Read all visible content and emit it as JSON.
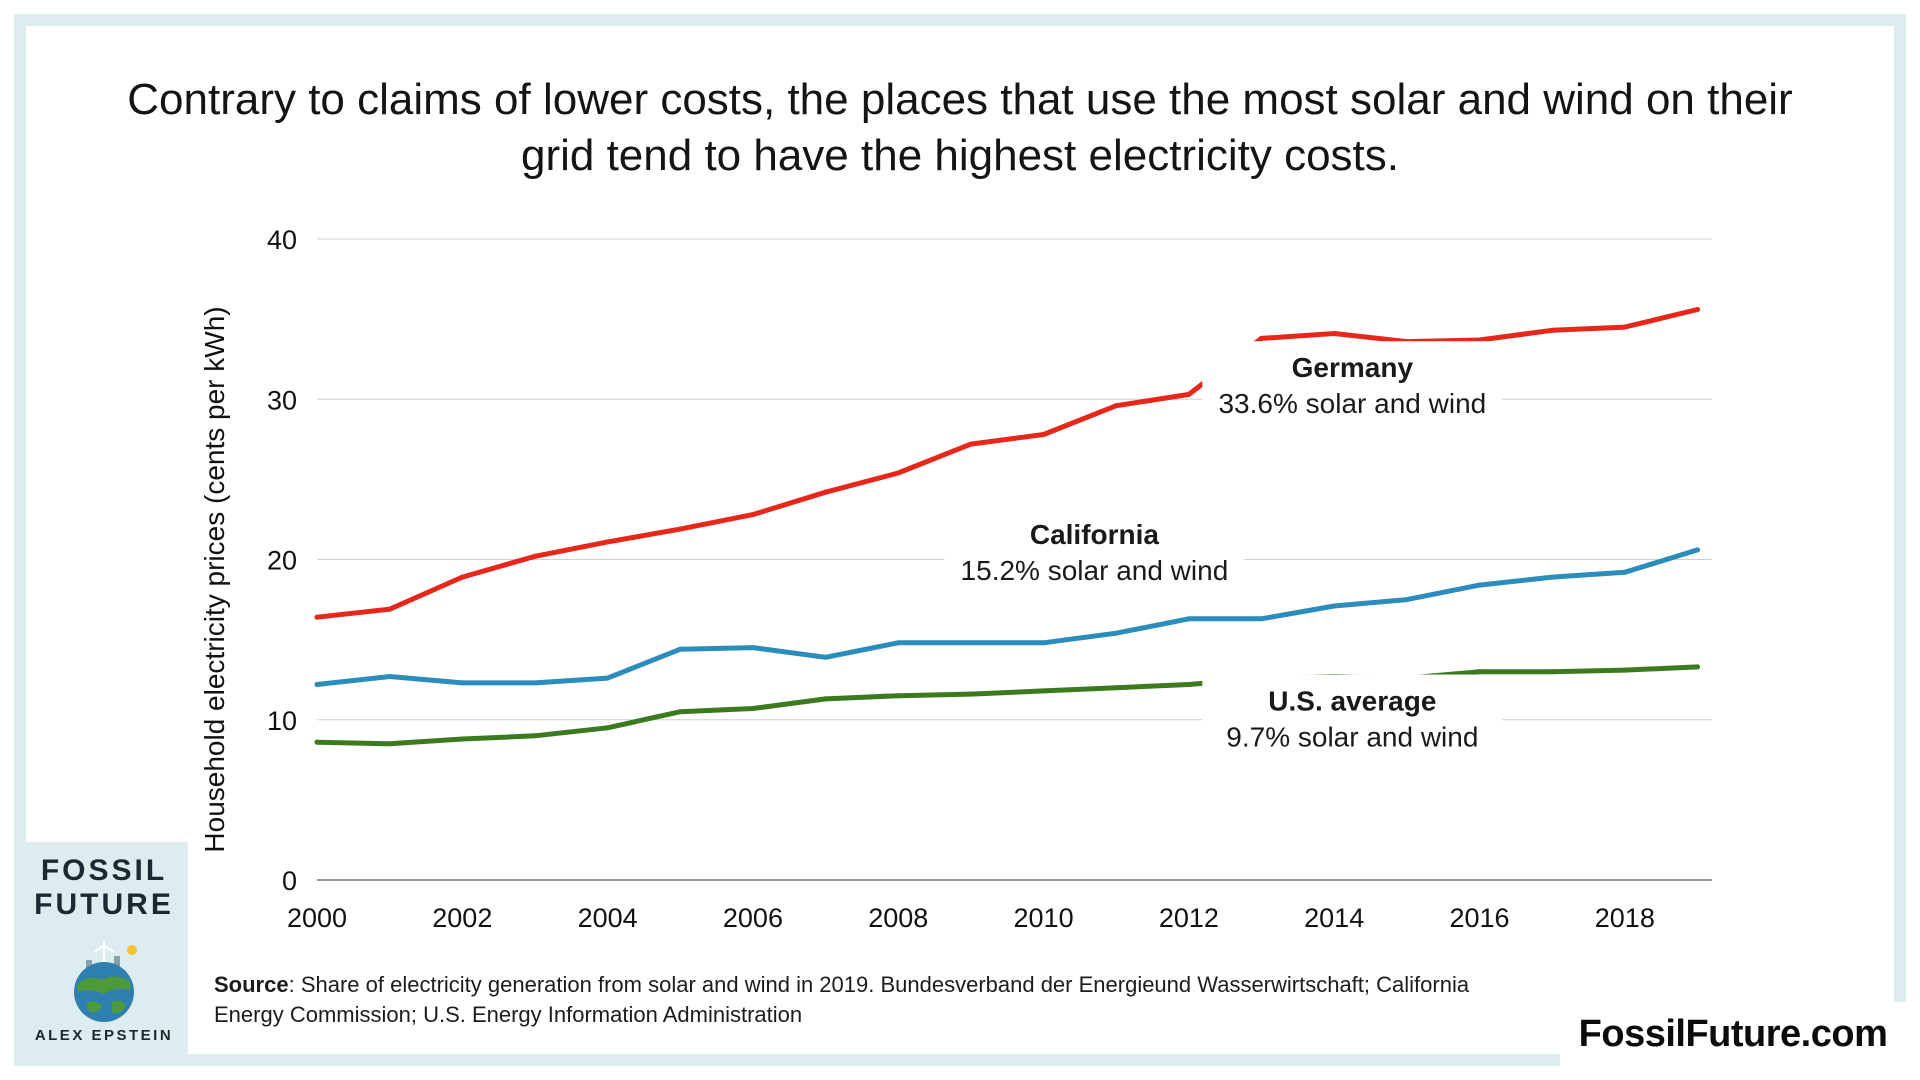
{
  "title": "Contrary to claims of lower costs, the places that use the most solar and wind on their grid tend to have the highest electricity costs.",
  "source": {
    "label": "Source",
    "text": ": Share of electricity generation from solar and wind in 2019. Bundesverband der Energieund Wasserwirtschaft; California Energy Commission; U.S. Energy Information Administration"
  },
  "site": "FossilFuture.com",
  "book": {
    "title_line1": "FOSSIL",
    "title_line2": "FUTURE",
    "author": "ALEX EPSTEIN"
  },
  "colors": {
    "germany": "#e8271b",
    "california": "#2a8dbb",
    "us_average": "#3b7a1e",
    "grid": "#cfcfcf",
    "background_accent": "#dcecef"
  },
  "chart_data": {
    "type": "line",
    "title": "Contrary to claims of lower costs, the places that use the most solar and wind on their grid tend to have the highest electricity costs.",
    "xlabel": "",
    "ylabel": "Household electricity prices (cents per kWh)",
    "x": [
      2000,
      2001,
      2002,
      2003,
      2004,
      2005,
      2006,
      2007,
      2008,
      2009,
      2010,
      2011,
      2012,
      2013,
      2014,
      2015,
      2016,
      2017,
      2018,
      2019
    ],
    "x_ticks": [
      2000,
      2002,
      2004,
      2006,
      2008,
      2010,
      2012,
      2014,
      2016,
      2018
    ],
    "y_ticks": [
      0,
      10,
      20,
      30,
      40
    ],
    "xlim": [
      2000,
      2019.2
    ],
    "ylim": [
      0,
      40
    ],
    "grid": true,
    "legend": "inline labels",
    "series": [
      {
        "name": "Germany",
        "annotation": "33.6% solar and wind",
        "color": "#e8271b",
        "values": [
          16.4,
          16.9,
          18.9,
          20.2,
          21.1,
          21.9,
          22.8,
          24.2,
          25.4,
          27.2,
          27.8,
          29.6,
          30.3,
          33.8,
          34.1,
          33.6,
          33.7,
          34.3,
          34.5,
          35.6
        ]
      },
      {
        "name": "California",
        "annotation": "15.2% solar and wind",
        "color": "#2a8dbb",
        "values": [
          12.2,
          12.7,
          12.3,
          12.3,
          12.6,
          14.4,
          14.5,
          13.9,
          14.8,
          14.8,
          14.8,
          15.4,
          16.3,
          16.3,
          17.1,
          17.5,
          18.4,
          18.9,
          19.2,
          20.6
        ]
      },
      {
        "name": "U.S. average",
        "annotation": "9.7% solar and wind",
        "color": "#3b7a1e",
        "values": [
          8.6,
          8.5,
          8.8,
          9.0,
          9.5,
          10.5,
          10.7,
          11.3,
          11.5,
          11.6,
          11.8,
          12.0,
          12.2,
          12.6,
          12.7,
          12.6,
          13.0,
          13.0,
          13.1,
          13.3
        ]
      }
    ]
  }
}
